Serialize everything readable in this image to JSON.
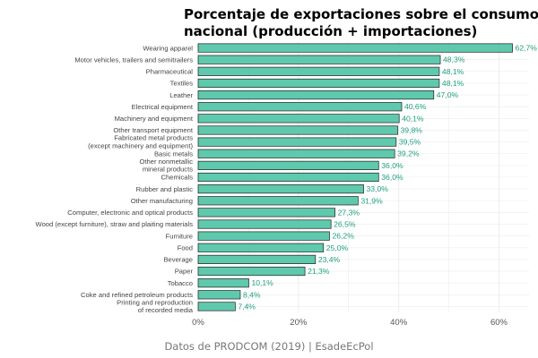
{
  "chart_data": {
    "type": "bar",
    "orientation": "horizontal",
    "title_lines": [
      "Porcentaje de exportaciones sobre el consumo",
      "nacional (producción + importaciones)"
    ],
    "caption": "Datos de PRODCOM (2019) | EsadeEcPol",
    "categories": [
      "Wearing apparel",
      "Motor vehicles, trailers and semitrailers",
      "Pharmaceutical",
      "Textiles",
      "Leather",
      "Electrical equipment",
      "Machinery and equipment",
      "Other transport equipment",
      "Fabricated metal products\n(except machinery and equipment)",
      "Basic metals",
      "Other nonmetallic\nmineral products",
      "Chemicals",
      "Rubber and plastic",
      "Other manufacturing",
      "Computer, electronic and optical products",
      "Wood (except furniture), straw and plaiting materials",
      "Furniture",
      "Food",
      "Beverage",
      "Paper",
      "Tobacco",
      "Coke and refined petroleum products",
      "Printing and reproduction\nof recorded media"
    ],
    "values": [
      62.7,
      48.3,
      48.1,
      48.1,
      47.0,
      40.6,
      40.1,
      39.8,
      39.5,
      39.2,
      36.0,
      36.0,
      33.0,
      31.9,
      27.3,
      26.5,
      26.2,
      25.0,
      23.4,
      21.3,
      10.1,
      8.4,
      7.4
    ],
    "value_labels": [
      "62,7%",
      "48,3%",
      "48,1%",
      "48,1%",
      "47,0%",
      "40,6%",
      "40,1%",
      "39,8%",
      "39,5%",
      "39,2%",
      "36,0%",
      "36,0%",
      "33,0%",
      "31,9%",
      "27,3%",
      "26,5%",
      "26,2%",
      "25,0%",
      "23,4%",
      "21,3%",
      "10,1%",
      "8,4%",
      "7,4%"
    ],
    "xlim": [
      0,
      66
    ],
    "x_ticks": [
      0,
      20,
      40,
      60
    ],
    "x_tick_labels": [
      "0%",
      "20%",
      "40%",
      "60%"
    ],
    "grid": true,
    "colors": {
      "bar_fill": "#5fc9ad",
      "bar_stroke": "#1f1f1f",
      "value_text": "#1f9f80",
      "grid": "#ececec"
    }
  }
}
